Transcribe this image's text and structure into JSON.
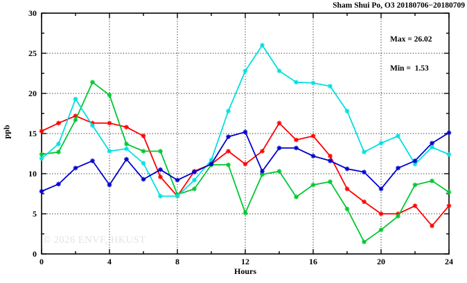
{
  "watermark": "© 2026 ENVF, HKUST",
  "chart_data": {
    "type": "line",
    "title": "Sham Shui Po, O3 20180706−20180709",
    "xlabel": "Hours",
    "ylabel": "ppb",
    "xlim": [
      0,
      24
    ],
    "ylim": [
      0,
      30
    ],
    "grid": "dotted",
    "legend_position": "none",
    "annotations": {
      "max": "Max = 26.02",
      "min": "Min =  1.53"
    },
    "x_major_ticks": [
      0,
      4,
      8,
      12,
      16,
      20,
      24
    ],
    "x_minor_ticks": [
      2,
      6,
      10,
      14,
      18,
      22
    ],
    "y_major_ticks": [
      0,
      5,
      10,
      15,
      20,
      25,
      30
    ],
    "y_minor_ticks": [
      2.5,
      7.5,
      12.5,
      17.5,
      22.5,
      27.5
    ],
    "x_grid_lines": [
      4,
      8,
      12,
      16,
      20
    ],
    "y_grid_lines": [
      5,
      10,
      15,
      20,
      25
    ],
    "marker": "star",
    "x": [
      0,
      1,
      2,
      3,
      4,
      5,
      6,
      7,
      8,
      9,
      10,
      11,
      12,
      13,
      14,
      15,
      16,
      17,
      18,
      19,
      20,
      21,
      22,
      23,
      24
    ],
    "series": [
      {
        "name": "red",
        "color": "#ff0000",
        "values": [
          15.3,
          16.3,
          17.2,
          16.3,
          16.3,
          15.8,
          14.7,
          9.6,
          7.2,
          10.3,
          11.2,
          12.8,
          11.2,
          12.8,
          16.3,
          14.2,
          14.7,
          12.2,
          8.1,
          6.5,
          5.0,
          5.0,
          6.0,
          3.5,
          6.0
        ]
      },
      {
        "name": "green",
        "color": "#00c832",
        "values": [
          12.4,
          12.7,
          16.7,
          21.4,
          19.8,
          13.7,
          12.8,
          12.8,
          7.4,
          8.1,
          11.1,
          11.1,
          5.1,
          9.9,
          10.3,
          7.1,
          8.6,
          9.0,
          5.6,
          1.5,
          3.0,
          4.7,
          8.6,
          9.1,
          7.7
        ]
      },
      {
        "name": "cyan",
        "color": "#00e0e0",
        "values": [
          11.9,
          13.7,
          19.3,
          16.0,
          12.8,
          13.1,
          11.3,
          7.2,
          7.2,
          9.2,
          11.7,
          17.8,
          22.8,
          26.0,
          22.8,
          21.4,
          21.3,
          20.9,
          17.8,
          12.7,
          13.8,
          14.7,
          11.2,
          13.3,
          12.4
        ]
      },
      {
        "name": "blue",
        "color": "#0000cd",
        "values": [
          7.8,
          8.7,
          10.7,
          11.6,
          8.6,
          11.8,
          9.3,
          10.5,
          9.2,
          10.2,
          11.2,
          14.6,
          15.2,
          10.3,
          13.2,
          13.2,
          12.2,
          11.6,
          10.6,
          10.2,
          8.1,
          10.7,
          11.6,
          13.8,
          15.1
        ]
      }
    ]
  }
}
